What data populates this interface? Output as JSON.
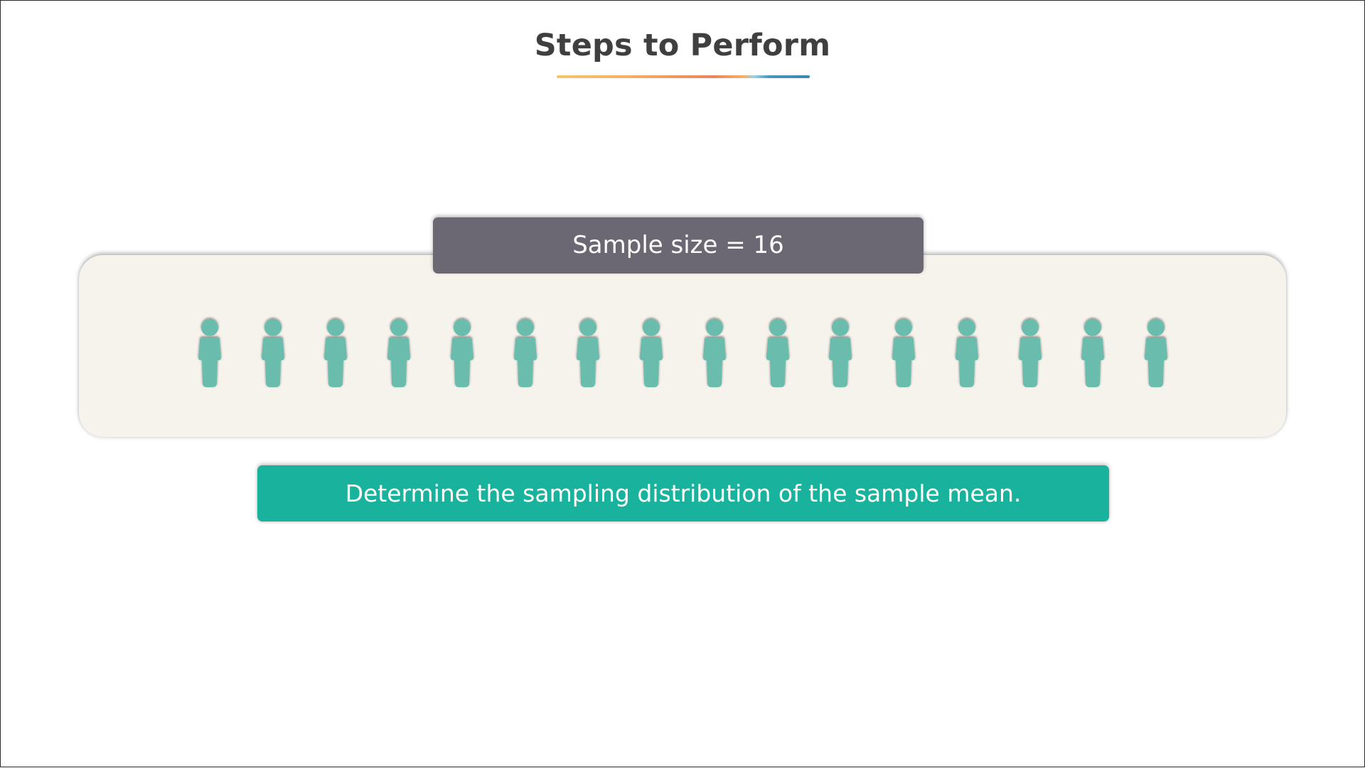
{
  "slide": {
    "title": "Steps to Perform",
    "sample_label": "Sample size = 16",
    "task_text": "Determine the sampling distribution of the sample mean.",
    "person_count": 16,
    "colors": {
      "person": "#6bbcac",
      "panel": "#f6f3ec",
      "label_bg": "#6c6873",
      "task_bg": "#19b29c",
      "title": "#3f3f3f"
    },
    "icon": "person-icon"
  }
}
